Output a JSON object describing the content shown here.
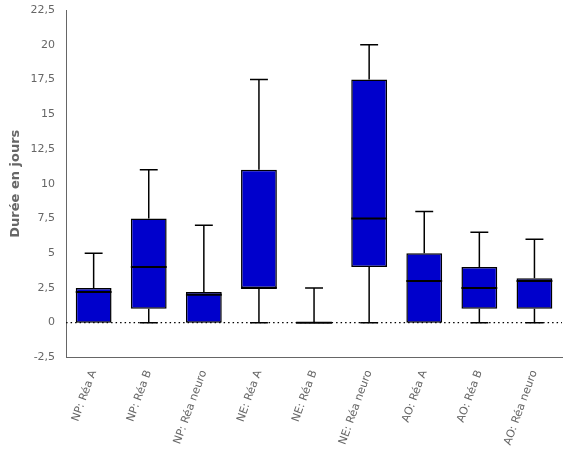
{
  "chart_data": {
    "type": "box",
    "ylabel": "Durée en jours",
    "categories": [
      "NP: Réa A",
      "NP: Réa B",
      "NP: Réa neuro",
      "NE: Réa A",
      "NE: Réa B",
      "NE: Réa neuro",
      "AO: Réa A",
      "AO: Réa B",
      "AO: Réa neuro"
    ],
    "boxes": [
      {
        "q1": 0.0,
        "median": 2.2,
        "q3": 2.5,
        "whisker_low": 0.0,
        "whisker_high": 5.0
      },
      {
        "q1": 1.0,
        "median": 4.0,
        "q3": 7.5,
        "whisker_low": 0.0,
        "whisker_high": 11.0
      },
      {
        "q1": 0.0,
        "median": 2.0,
        "q3": 2.2,
        "whisker_low": 0.0,
        "whisker_high": 7.0
      },
      {
        "q1": 2.5,
        "median": 2.5,
        "q3": 11.0,
        "whisker_low": 0.0,
        "whisker_high": 17.5
      },
      {
        "q1": 0.0,
        "median": 0.0,
        "q3": 0.0,
        "whisker_low": 0.0,
        "whisker_high": 2.5
      },
      {
        "q1": 4.0,
        "median": 7.5,
        "q3": 17.5,
        "whisker_low": 0.0,
        "whisker_high": 20.0
      },
      {
        "q1": 0.0,
        "median": 3.0,
        "q3": 5.0,
        "whisker_low": 0.0,
        "whisker_high": 8.0
      },
      {
        "q1": 1.0,
        "median": 2.5,
        "q3": 4.0,
        "whisker_low": 0.0,
        "whisker_high": 6.5
      },
      {
        "q1": 1.0,
        "median": 3.0,
        "q3": 3.2,
        "whisker_low": 0.0,
        "whisker_high": 6.0
      }
    ],
    "color": "#0000CC",
    "reference_line_y": 0,
    "ylim": [
      -2.5,
      22.5
    ],
    "yticks": [
      {
        "value": -2.5,
        "label": "-2,5"
      },
      0,
      {
        "value": 2.5,
        "label": "2,5"
      },
      5,
      {
        "value": 7.5,
        "label": "7,5"
      },
      10,
      {
        "value": 12.5,
        "label": "12,5"
      },
      15,
      {
        "value": 17.5,
        "label": "17,5"
      },
      20,
      {
        "value": 22.5,
        "label": "22,5"
      }
    ],
    "grid": false
  }
}
